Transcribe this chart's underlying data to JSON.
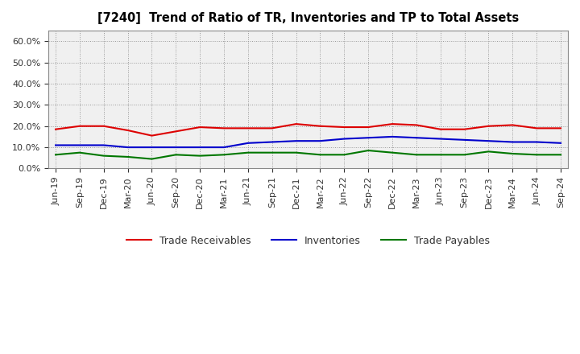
{
  "title": "[7240]  Trend of Ratio of TR, Inventories and TP to Total Assets",
  "x_labels": [
    "Jun-19",
    "Sep-19",
    "Dec-19",
    "Mar-20",
    "Jun-20",
    "Sep-20",
    "Dec-20",
    "Mar-21",
    "Jun-21",
    "Sep-21",
    "Dec-21",
    "Mar-22",
    "Jun-22",
    "Sep-22",
    "Dec-22",
    "Mar-23",
    "Jun-23",
    "Sep-23",
    "Dec-23",
    "Mar-24",
    "Jun-24",
    "Sep-24"
  ],
  "trade_receivables": [
    0.185,
    0.2,
    0.2,
    0.18,
    0.155,
    0.175,
    0.195,
    0.19,
    0.19,
    0.19,
    0.21,
    0.2,
    0.195,
    0.195,
    0.21,
    0.205,
    0.185,
    0.185,
    0.2,
    0.205,
    0.19,
    0.19
  ],
  "inventories": [
    0.11,
    0.11,
    0.11,
    0.1,
    0.1,
    0.1,
    0.1,
    0.1,
    0.12,
    0.125,
    0.13,
    0.13,
    0.14,
    0.145,
    0.15,
    0.145,
    0.14,
    0.135,
    0.13,
    0.125,
    0.125,
    0.12
  ],
  "trade_payables": [
    0.065,
    0.075,
    0.06,
    0.055,
    0.045,
    0.065,
    0.06,
    0.065,
    0.075,
    0.075,
    0.075,
    0.065,
    0.065,
    0.085,
    0.075,
    0.065,
    0.065,
    0.065,
    0.08,
    0.07,
    0.065,
    0.065
  ],
  "tr_color": "#DD0000",
  "inv_color": "#0000CC",
  "tp_color": "#007700",
  "ylim": [
    0.0,
    0.65
  ],
  "yticks": [
    0.0,
    0.1,
    0.2,
    0.3,
    0.4,
    0.5,
    0.6
  ],
  "background_color": "#FFFFFF",
  "plot_bg_color": "#F0F0F0",
  "grid_color": "#999999",
  "legend_labels": [
    "Trade Receivables",
    "Inventories",
    "Trade Payables"
  ]
}
